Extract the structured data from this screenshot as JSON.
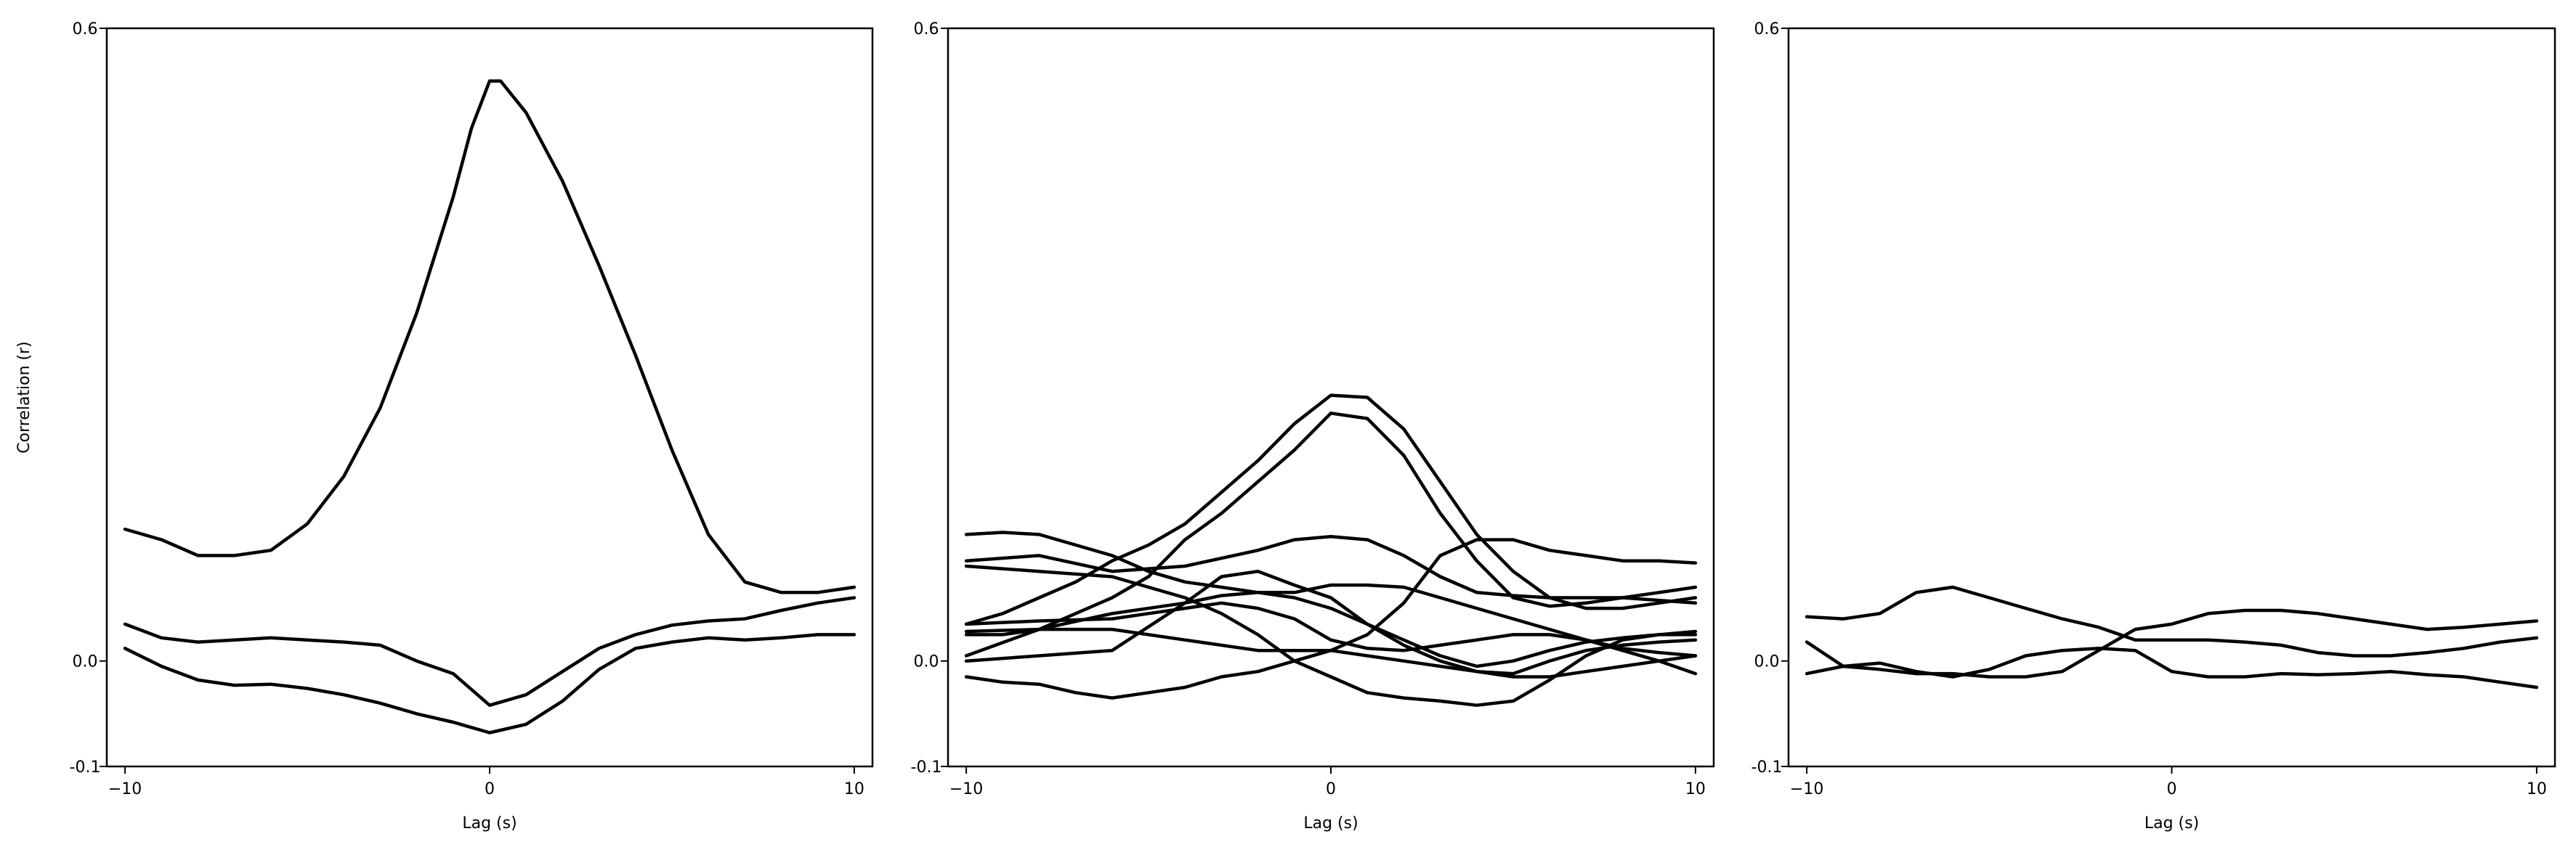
{
  "chart_data": [
    {
      "type": "line",
      "title": "",
      "xlabel": "Lag (s)",
      "ylabel": "Correlation (r)",
      "xlim": [
        -10.5,
        10.5
      ],
      "ylim": [
        -0.1,
        0.6
      ],
      "xticks": [
        -10,
        0,
        10
      ],
      "xtick_labels": [
        "−10",
        "0",
        "10"
      ],
      "yticks": [
        -0.1,
        0.0,
        0.6
      ],
      "ytick_labels": [
        "-0.1",
        "0.0",
        "0.6"
      ],
      "grid": false,
      "legend": "none",
      "line_color": "#000000",
      "series": [
        {
          "x": [
            -10,
            -9,
            -8,
            -7,
            -6,
            -5,
            -4,
            -3,
            -2,
            -1,
            -0.5,
            0,
            0.3,
            1,
            2,
            3,
            4,
            5,
            6,
            7,
            8,
            9,
            10
          ],
          "y": [
            0.125,
            0.115,
            0.1,
            0.1,
            0.105,
            0.13,
            0.175,
            0.24,
            0.33,
            0.44,
            0.505,
            0.55,
            0.55,
            0.52,
            0.455,
            0.375,
            0.29,
            0.2,
            0.12,
            0.075,
            0.065,
            0.065,
            0.07
          ]
        },
        {
          "x": [
            -10,
            -9,
            -8,
            -7,
            -6,
            -5,
            -4,
            -3,
            -2,
            -1,
            0,
            1,
            2,
            3,
            4,
            5,
            6,
            7,
            8,
            9,
            10
          ],
          "y": [
            0.035,
            0.022,
            0.018,
            0.02,
            0.022,
            0.02,
            0.018,
            0.015,
            0.0,
            -0.012,
            -0.042,
            -0.032,
            -0.01,
            0.012,
            0.025,
            0.034,
            0.038,
            0.04,
            0.048,
            0.055,
            0.06
          ]
        },
        {
          "x": [
            -10,
            -9,
            -8,
            -7,
            -6,
            -5,
            -4,
            -3,
            -2,
            -1,
            0,
            1,
            2,
            3,
            4,
            5,
            6,
            7,
            8,
            9,
            10
          ],
          "y": [
            0.012,
            -0.005,
            -0.018,
            -0.023,
            -0.022,
            -0.026,
            -0.032,
            -0.04,
            -0.05,
            -0.058,
            -0.068,
            -0.06,
            -0.038,
            -0.008,
            0.012,
            0.018,
            0.022,
            0.02,
            0.022,
            0.025,
            0.025
          ]
        }
      ]
    },
    {
      "type": "line",
      "title": "",
      "xlabel": "Lag (s)",
      "ylabel": "",
      "xlim": [
        -10.5,
        10.5
      ],
      "ylim": [
        -0.1,
        0.6
      ],
      "xticks": [
        -10,
        0,
        10
      ],
      "xtick_labels": [
        "−10",
        "0",
        "10"
      ],
      "yticks": [
        -0.1,
        0.0,
        0.6
      ],
      "ytick_labels": [
        "-0.1",
        "0.0",
        "0.6"
      ],
      "grid": false,
      "legend": "none",
      "line_color": "#000000",
      "series": [
        {
          "x": [
            -10,
            -8,
            -6,
            -4,
            -2,
            -1,
            0,
            1,
            2,
            3,
            4,
            5,
            6,
            8,
            10
          ],
          "y": [
            0.095,
            0.1,
            0.085,
            0.09,
            0.105,
            0.115,
            0.118,
            0.115,
            0.1,
            0.08,
            0.065,
            0.062,
            0.06,
            0.06,
            0.055
          ]
        },
        {
          "x": [
            -10,
            -9,
            -8,
            -7,
            -6,
            -5,
            -4,
            -3,
            -2,
            -1,
            0,
            1,
            2,
            3,
            4,
            5,
            6,
            7,
            8,
            9,
            10
          ],
          "y": [
            0.025,
            0.025,
            0.03,
            0.045,
            0.06,
            0.08,
            0.115,
            0.14,
            0.17,
            0.2,
            0.235,
            0.23,
            0.195,
            0.14,
            0.095,
            0.06,
            0.052,
            0.055,
            0.06,
            0.065,
            0.07
          ]
        },
        {
          "x": [
            -10,
            -9,
            -8,
            -7,
            -6,
            -5,
            -4,
            -3,
            -2,
            -1,
            0,
            1,
            2,
            3,
            4,
            5,
            6,
            7,
            8,
            9,
            10
          ],
          "y": [
            0.035,
            0.045,
            0.06,
            0.075,
            0.095,
            0.11,
            0.13,
            0.16,
            0.19,
            0.225,
            0.252,
            0.25,
            0.22,
            0.17,
            0.12,
            0.085,
            0.06,
            0.05,
            0.05,
            0.055,
            0.06
          ]
        },
        {
          "x": [
            -10,
            -9,
            -8,
            -7,
            -6,
            -5,
            -4,
            -3,
            -2,
            -1,
            0,
            1,
            2,
            3,
            4,
            5,
            6,
            7,
            8,
            9,
            10
          ],
          "y": [
            0.12,
            0.122,
            0.12,
            0.11,
            0.1,
            0.085,
            0.075,
            0.07,
            0.065,
            0.06,
            0.05,
            0.035,
            0.02,
            0.005,
            -0.005,
            0.0,
            0.01,
            0.018,
            0.022,
            0.025,
            0.025
          ]
        },
        {
          "x": [
            -10,
            -8,
            -6,
            -4,
            -3,
            -2,
            -1,
            0,
            1,
            2,
            3,
            4,
            5,
            6,
            7,
            8,
            9,
            10
          ],
          "y": [
            0.005,
            0.03,
            0.045,
            0.055,
            0.062,
            0.065,
            0.065,
            0.072,
            0.072,
            0.07,
            0.06,
            0.05,
            0.04,
            0.03,
            0.02,
            0.012,
            0.008,
            0.005
          ]
        },
        {
          "x": [
            -10,
            -8,
            -6,
            -4,
            -3,
            -2,
            -1,
            0,
            1,
            2,
            3,
            4,
            5,
            6,
            7,
            8,
            9,
            10
          ],
          "y": [
            0.0,
            0.005,
            0.01,
            0.055,
            0.08,
            0.085,
            0.072,
            0.06,
            0.035,
            0.015,
            0.0,
            -0.01,
            -0.015,
            -0.015,
            -0.01,
            -0.005,
            0.0,
            0.005
          ]
        },
        {
          "x": [
            -10,
            -9,
            -8,
            -7,
            -6,
            -5,
            -4,
            -3,
            -2,
            -1,
            0,
            1,
            2,
            3,
            4,
            5,
            6,
            7,
            8,
            9,
            10
          ],
          "y": [
            -0.015,
            -0.02,
            -0.022,
            -0.03,
            -0.035,
            -0.03,
            -0.025,
            -0.015,
            -0.01,
            0.0,
            0.01,
            0.005,
            0.0,
            -0.005,
            -0.01,
            -0.012,
            0.0,
            0.01,
            0.015,
            0.018,
            0.02
          ]
        },
        {
          "x": [
            -10,
            -8,
            -6,
            -5,
            -4,
            -3,
            -2,
            -1,
            0,
            1,
            2,
            3,
            4,
            5,
            6,
            7,
            8,
            9,
            10
          ],
          "y": [
            0.09,
            0.085,
            0.08,
            0.07,
            0.06,
            0.045,
            0.025,
            0.0,
            -0.015,
            -0.03,
            -0.035,
            -0.038,
            -0.042,
            -0.038,
            -0.018,
            0.005,
            0.02,
            0.025,
            0.028
          ]
        },
        {
          "x": [
            -10,
            -8,
            -6,
            -5,
            -4,
            -3,
            -2,
            -1,
            0,
            1,
            2,
            3,
            4,
            5,
            6,
            7,
            8,
            9,
            10
          ],
          "y": [
            0.035,
            0.038,
            0.04,
            0.045,
            0.05,
            0.055,
            0.05,
            0.04,
            0.02,
            0.012,
            0.01,
            0.015,
            0.02,
            0.025,
            0.025,
            0.02,
            0.01,
            0.0,
            -0.012
          ]
        },
        {
          "x": [
            -10,
            -8,
            -6,
            -4,
            -2,
            0,
            1,
            2,
            3,
            4,
            5,
            6,
            7,
            8,
            9,
            10
          ],
          "y": [
            0.028,
            0.03,
            0.03,
            0.02,
            0.01,
            0.01,
            0.025,
            0.055,
            0.1,
            0.115,
            0.115,
            0.105,
            0.1,
            0.095,
            0.095,
            0.093
          ]
        }
      ]
    },
    {
      "type": "line",
      "title": "",
      "xlabel": "Lag (s)",
      "ylabel": "",
      "xlim": [
        -10.5,
        10.5
      ],
      "ylim": [
        -0.1,
        0.6
      ],
      "xticks": [
        -10,
        0,
        10
      ],
      "xtick_labels": [
        "−10",
        "0",
        "10"
      ],
      "yticks": [
        -0.1,
        0.0,
        0.6
      ],
      "ytick_labels": [
        "-0.1",
        "0.0",
        "0.6"
      ],
      "grid": false,
      "legend": "none",
      "line_color": "#000000",
      "series": [
        {
          "x": [
            -10,
            -9,
            -8,
            -7,
            -6,
            -5,
            -4,
            -3,
            -2,
            -1,
            0,
            1,
            2,
            3,
            4,
            5,
            6,
            7,
            8,
            9,
            10
          ],
          "y": [
            0.042,
            0.04,
            0.045,
            0.065,
            0.07,
            0.06,
            0.05,
            0.04,
            0.032,
            0.02,
            0.02,
            0.02,
            0.018,
            0.015,
            0.008,
            0.005,
            0.005,
            0.008,
            0.012,
            0.018,
            0.022
          ]
        },
        {
          "x": [
            -10,
            -9,
            -8,
            -7,
            -6,
            -5,
            -4,
            -3,
            -2,
            -1,
            0,
            1,
            2,
            3,
            4,
            5,
            6,
            7,
            8,
            9,
            10
          ],
          "y": [
            0.018,
            -0.005,
            -0.008,
            -0.012,
            -0.012,
            -0.015,
            -0.015,
            -0.01,
            0.01,
            0.03,
            0.035,
            0.045,
            0.048,
            0.048,
            0.045,
            0.04,
            0.035,
            0.03,
            0.032,
            0.035,
            0.038
          ]
        },
        {
          "x": [
            -10,
            -9,
            -8,
            -7,
            -6,
            -5,
            -4,
            -3,
            -2,
            -1,
            0,
            1,
            2,
            3,
            4,
            5,
            6,
            7,
            8,
            9,
            10
          ],
          "y": [
            -0.012,
            -0.005,
            -0.002,
            -0.01,
            -0.015,
            -0.008,
            0.005,
            0.01,
            0.012,
            0.01,
            -0.01,
            -0.015,
            -0.015,
            -0.012,
            -0.013,
            -0.012,
            -0.01,
            -0.013,
            -0.015,
            -0.02,
            -0.025
          ]
        }
      ]
    }
  ]
}
